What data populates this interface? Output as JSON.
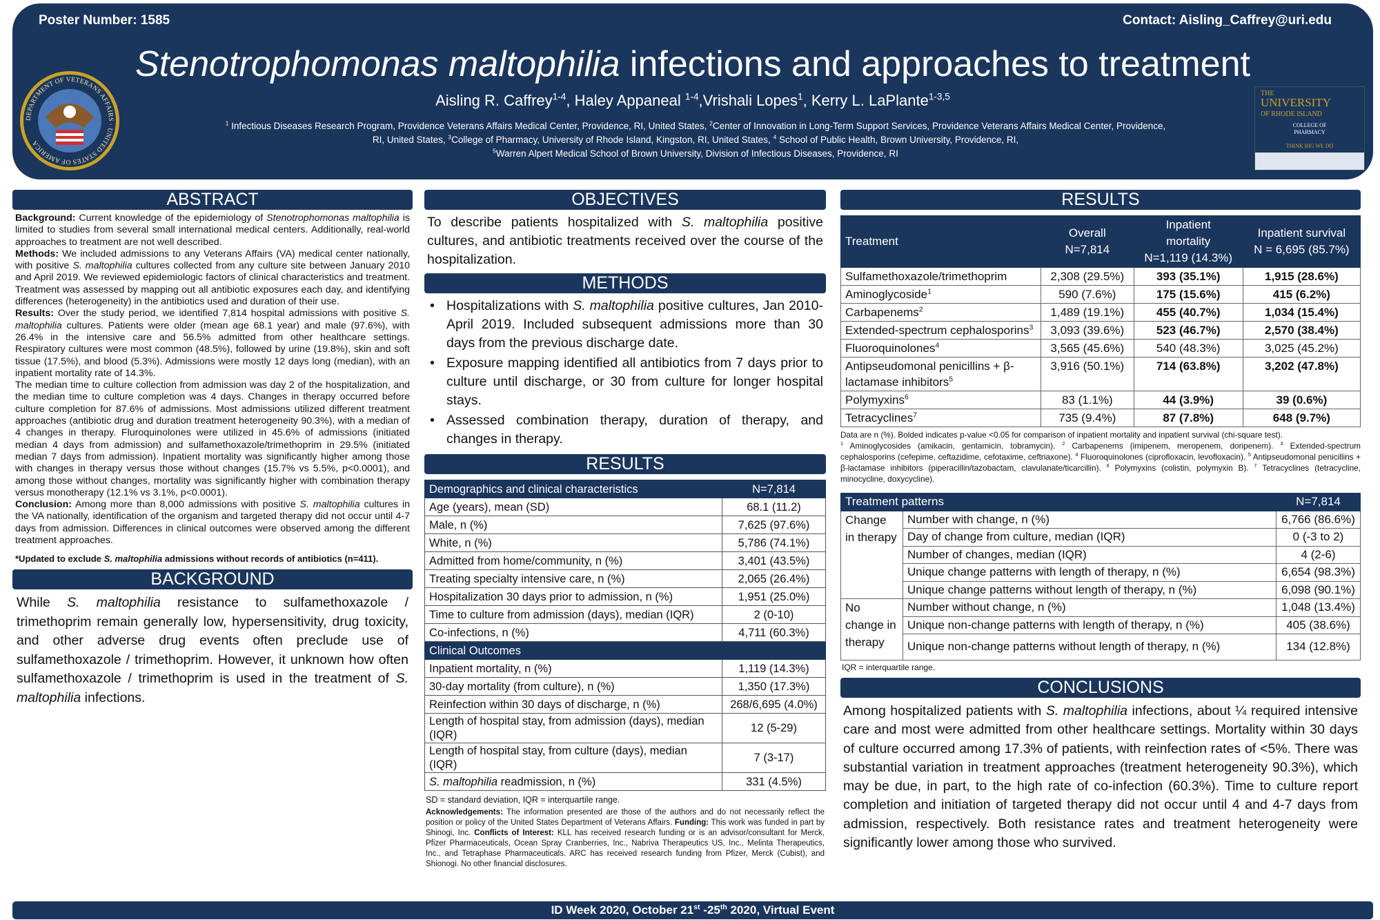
{
  "header": {
    "poster_number": "Poster Number: 1585",
    "contact": "Contact: Aisling_Caffrey@uri.edu",
    "title": [
      {
        "i": "Stenotrophomonas maltophilia"
      },
      " infections and approaches to treatment"
    ],
    "authors": [
      "Aisling R. Caffrey",
      {
        "sup": "1-4"
      },
      ", Haley Appaneal ",
      {
        "sup": "1-4"
      },
      ",Vrishali Lopes",
      {
        "sup": "1"
      },
      ", Kerry L. LaPlante",
      {
        "sup": "1-3,5"
      }
    ],
    "affiliations": [
      {
        "sup": "1"
      },
      " Infectious Diseases Research Program, Providence Veterans Affairs Medical Center, Providence, RI, United States, ",
      {
        "sup": "2"
      },
      "Center of Innovation in Long-Term Support Services, Providence Veterans Affairs Medical Center, Providence, RI, United States, ",
      {
        "sup": "3"
      },
      "College of Pharmacy, University of Rhode Island, Kingston, RI, United States, ",
      {
        "sup": "4"
      },
      " School of Public Health, Brown University, Providence, RI, ",
      {
        "br": ""
      },
      {
        "sup": "5"
      },
      "Warren Alpert Medical School of Brown University, Division of Infectious Diseases, Providence, RI"
    ],
    "va_seal_text": "DEPARTMENT OF VETERANS AFFAIRS · UNITED STATES OF AMERICA",
    "uri_logo_text": [
      "THE",
      "UNIVERSITY",
      "OF RHODE ISLAND",
      "COLLEGE OF",
      "PHARMACY",
      "THINK BIG WE DO"
    ]
  },
  "abstract": {
    "heading": "ABSTRACT",
    "paragraphs": [
      [
        {
          "b": "Background:"
        },
        " Current knowledge of the epidemiology of ",
        {
          "i": "Stenotrophomonas maltophilia"
        },
        " is limited to studies from several small international medical centers. Additionally, real-world approaches to treatment are not well described."
      ],
      [
        {
          "b": "Methods:"
        },
        " We included admissions to any Veterans Affairs (VA) medical center nationally, with positive ",
        {
          "i": "S. maltophilia"
        },
        " cultures collected from any culture site between January 2010 and April 2019. We reviewed epidemiologic factors of clinical characteristics and treatment. Treatment was assessed by mapping out all antibiotic exposures each day, and identifying differences (heterogeneity) in the antibiotics used and duration of their use."
      ],
      [
        {
          "b": "Results:"
        },
        " Over the study period, we identified 7,814 hospital admissions with positive ",
        {
          "i": "S. maltophilia"
        },
        " cultures. Patients were older (mean age 68.1 year) and male (97.6%), with 26.4% in the intensive care and 56.5% admitted from other healthcare settings. Respiratory cultures were most common (48.5%), followed by urine (19.8%), skin and soft tissue (17.5%), and blood (5.3%). Admissions were mostly 12 days long (median), with an inpatient mortality rate of 14.3%."
      ],
      [
        "The median time to culture collection from admission was day 2 of the hospitalization, and the median time to culture completion was 4 days. Changes in therapy occurred before culture completion for 87.6% of admissions. Most admissions utilized different treatment approaches (antibiotic drug and duration treatment heterogeneity 90.3%), with a median of 4 changes in therapy. Fluroquinolones were utilized in 45.6% of admissions (initiated median 4 days from admission) and sulfamethoxazole/trimethoprim in 29.5% (initiated median 7 days from admission). Inpatient mortality was significantly higher among those with changes in therapy versus those without changes (15.7% vs 5.5%, p<0.0001), and among those without changes, mortality was significantly higher with combination therapy versus monotherapy (12.1% vs 3.1%, p<0.0001)."
      ],
      [
        {
          "b": "Conclusion:"
        },
        " Among more than 8,000 admissions with positive ",
        {
          "i": "S. maltophilia"
        },
        " cultures in the VA nationally, identification of the organism and targeted therapy did not occur until 4-7 days from admission. Differences in clinical outcomes were observed among the different treatment approaches."
      ]
    ],
    "note": [
      "*Updated to exclude ",
      {
        "i": "S. maltophilia"
      },
      " admissions without records of antibiotics (n=411)."
    ]
  },
  "background": {
    "heading": "BACKGROUND",
    "text": [
      "While ",
      {
        "i": "S. maltophilia"
      },
      " resistance to sulfamethoxazole / trimethoprim remain generally low, hypersensitivity, drug toxicity, and other adverse drug events often preclude use of sulfamethoxazole / trimethoprim. However, it unknown how often sulfamethoxazole / trimethoprim is used in the treatment of ",
      {
        "i": "S. maltophilia"
      },
      " infections."
    ]
  },
  "objectives": {
    "heading": "OBJECTIVES",
    "text": [
      "To describe patients hospitalized with ",
      {
        "i": "S. maltophilia"
      },
      " positive cultures, and antibiotic treatments received over the course of the hospitalization."
    ]
  },
  "methods": {
    "heading": "METHODS",
    "bullets": [
      [
        "Hospitalizations with ",
        {
          "i": "S. maltophilia"
        },
        " positive cultures, Jan 2010-April 2019. Included subsequent admissions more than 30 days from the previous discharge date."
      ],
      [
        "Exposure mapping identified all antibiotics from 7 days prior to culture until discharge, or 30 from culture for longer hospital stays."
      ],
      [
        "Assessed combination therapy, duration of therapy, and changes in therapy."
      ]
    ]
  },
  "results_mid": {
    "heading": "RESULTS",
    "table": [
      {
        "h": true,
        "label": [
          "Demographics and clinical characteristics"
        ],
        "value": "N=7,814"
      },
      {
        "label": [
          "Age (years), mean (SD)"
        ],
        "value": "68.1 (11.2)"
      },
      {
        "label": [
          "Male, n (%)"
        ],
        "value": "7,625 (97.6%)"
      },
      {
        "label": [
          "White, n (%)"
        ],
        "value": "5,786 (74.1%)"
      },
      {
        "label": [
          "Admitted from home/community, n (%)"
        ],
        "value": "3,401 (43.5%)"
      },
      {
        "label": [
          "Treating specialty intensive care, n (%)"
        ],
        "value": "2,065 (26.4%)"
      },
      {
        "label": [
          "Hospitalization 30 days prior to admission, n (%)"
        ],
        "value": "1,951 (25.0%)"
      },
      {
        "label": [
          "Time to culture from admission (days), median (IQR)"
        ],
        "value": "2 (0-10)"
      },
      {
        "label": [
          "Co-infections, n (%)"
        ],
        "value": "4,711 (60.3%)"
      },
      {
        "h": true,
        "label": [
          "Clinical Outcomes"
        ],
        "value": ""
      },
      {
        "label": [
          "Inpatient mortality, n (%)"
        ],
        "value": "1,119 (14.3%)"
      },
      {
        "label": [
          "30-day mortality (from culture), n (%)"
        ],
        "value": "1,350 (17.3%)"
      },
      {
        "label": [
          "Reinfection within 30 days of discharge, n (%)"
        ],
        "value": "268/6,695 (4.0%)"
      },
      {
        "label": [
          "Length of hospital stay, from admission (days), median (IQR)"
        ],
        "value": "12 (5-29)"
      },
      {
        "label": [
          "Length of hospital stay, from culture (days), median (IQR)"
        ],
        "value": "7 (3-17)"
      },
      {
        "label": [
          {
            "i": "S. maltophilia"
          },
          " readmission, n (%)"
        ],
        "value": "331 (4.5%)"
      }
    ],
    "abbrev": "SD = standard deviation, IQR =  interquartile range.",
    "acknowledgements": [
      {
        "b": "Acknowledgements:"
      },
      " The information presented are those of the authors and do not necessarily reflect the position or policy of the United States Department of Veterans Affairs. ",
      {
        "b": "Funding:"
      },
      " This work was funded in part by Shinogi, Inc. ",
      {
        "b": "Conflicts of Interest:"
      },
      " KLL has received research funding or is an advisor/consultant for Merck, Pfizer Pharmaceuticals, Ocean Spray Cranberries, Inc., Nabriva Therapeutics US, Inc., Melinta Therapeutics, Inc., and Tetraphase Pharmaceuticals. ARC has received research funding from Pfizer, Merck (Cubist), and Shionogi. No other financial disclosures."
    ]
  },
  "results_right": {
    "heading": "RESULTS",
    "treatment_table": {
      "headers": [
        "Treatment",
        "Overall\nN=7,814",
        "Inpatient\nmortality\nN=1,119 (14.3%)",
        "Inpatient survival\nN = 6,695 (85.7%)"
      ],
      "rows": [
        {
          "name": [
            "Sulfamethoxazole/trimethoprim"
          ],
          "overall": "2,308 (29.5%)",
          "mortality": "393 (35.1%)",
          "survival": "1,915 (28.6%)",
          "bold": true
        },
        {
          "name": [
            "Aminoglycoside",
            {
              "sup": "1"
            }
          ],
          "overall": "590 (7.6%)",
          "mortality": "175 (15.6%)",
          "survival": "415 (6.2%)",
          "bold": true
        },
        {
          "name": [
            "Carbapenems",
            {
              "sup": "2"
            }
          ],
          "overall": "1,489 (19.1%)",
          "mortality": "455 (40.7%)",
          "survival": "1,034 (15.4%)",
          "bold": true
        },
        {
          "name": [
            "Extended-spectrum cephalosporins",
            {
              "sup": "3"
            }
          ],
          "overall": "3,093 (39.6%)",
          "mortality": "523 (46.7%)",
          "survival": "2,570 (38.4%)",
          "bold": true
        },
        {
          "name": [
            "Fluoroquinolones",
            {
              "sup": "4"
            }
          ],
          "overall": "3,565 (45.6%)",
          "mortality": "540 (48.3%)",
          "survival": "3,025 (45.2%)",
          "bold": false
        },
        {
          "name": [
            "Antipseudomonal penicillins + β-lactamase inhibitors",
            {
              "sup": "5"
            }
          ],
          "overall": "3,916 (50.1%)",
          "mortality": "714 (63.8%)",
          "survival": "3,202 (47.8%)",
          "bold": true
        },
        {
          "name": [
            "Polymyxins",
            {
              "sup": "6"
            }
          ],
          "overall": "83 (1.1%)",
          "mortality": "44 (3.9%)",
          "survival": "39 (0.6%)",
          "bold": true
        },
        {
          "name": [
            "Tetracyclines",
            {
              "sup": "7"
            }
          ],
          "overall": "735 (9.4%)",
          "mortality": "87 (7.8%)",
          "survival": "648 (9.7%)",
          "bold": true
        }
      ]
    },
    "footnotes": [
      "Data are n (%). Bolded indicates p-value <0.05 for comparison of inpatient mortality and inpatient survival (chi-square test). ",
      {
        "br": ""
      },
      {
        "sup": "1"
      },
      " Aminoglycosides (amikacin, gentamicin, tobramycin). ",
      {
        "sup": "2"
      },
      " Carbapenems (imipenem, meropenem, doripenem). ",
      {
        "sup": "3"
      },
      " Extended-spectrum cephalosporins (cefepime, ceftazidime, cefotaxime, ceftriaxone). ",
      {
        "sup": "4"
      },
      " Fluoroquinolones (ciprofloxacin, levofloxacin). ",
      {
        "sup": "5"
      },
      " Antipseudomonal penicillins + β-lactamase inhibitors (piperacillin/tazobactam, clavulanate/ticarcillin). ",
      {
        "sup": "6"
      },
      " Polymyxins (colistin, polymyxin B). ",
      {
        "sup": "7"
      },
      " Tetracyclines (tetracycline, minocycline, doxycycline)."
    ],
    "patterns_table": {
      "header": "Treatment patterns",
      "header_value": "N=7,814",
      "groups": [
        {
          "label": "Change in therapy",
          "rows": [
            {
              "label": "Number with change, n (%)",
              "value": "6,766 (86.6%)"
            },
            {
              "label": "Day of change from culture, median (IQR)",
              "value": "0 (-3 to 2)"
            },
            {
              "label": "Number of changes, median (IQR)",
              "value": "4 (2-6)"
            },
            {
              "label": "Unique change patterns with length of therapy, n (%)",
              "value": "6,654 (98.3%)"
            },
            {
              "label": "Unique change patterns without length of therapy, n (%)",
              "value": "6,098 (90.1%)"
            }
          ]
        },
        {
          "label": "No change in therapy",
          "rows": [
            {
              "label": "Number without change, n (%)",
              "value": "1,048 (13.4%)"
            },
            {
              "label": "Unique non-change patterns with length of therapy, n (%)",
              "value": "405 (38.6%)"
            },
            {
              "label": "Unique non-change patterns without length of therapy, n (%)",
              "value": "134 (12.8%)"
            }
          ]
        }
      ]
    },
    "iqr_note": "IQR =  interquartile range."
  },
  "conclusions": {
    "heading": "CONCLUSIONS",
    "text": [
      "Among hospitalized patients with ",
      {
        "i": "S. maltophilia"
      },
      " infections, about ¼ required intensive care and most were admitted from other healthcare settings. Mortality within 30 days of culture occurred among 17.3% of patients, with reinfection rates of <5%. There was substantial variation in treatment approaches (treatment heterogeneity 90.3%), which may be due, in part, to the high rate of co-infection (60.3%). Time to culture report completion and initiation of targeted therapy did not occur until 4 and 4-7 days from admission, respectively. Both resistance rates and treatment heterogeneity were significantly lower among those who survived."
    ]
  },
  "footer": [
    "ID Week 2020, October 21",
    {
      "sup": "st"
    },
    " -25",
    {
      "sup": "th"
    },
    " 2020, Virtual Event"
  ],
  "colors": {
    "navy": "#1b365d",
    "white": "#ffffff",
    "gold": "#c9a227"
  }
}
